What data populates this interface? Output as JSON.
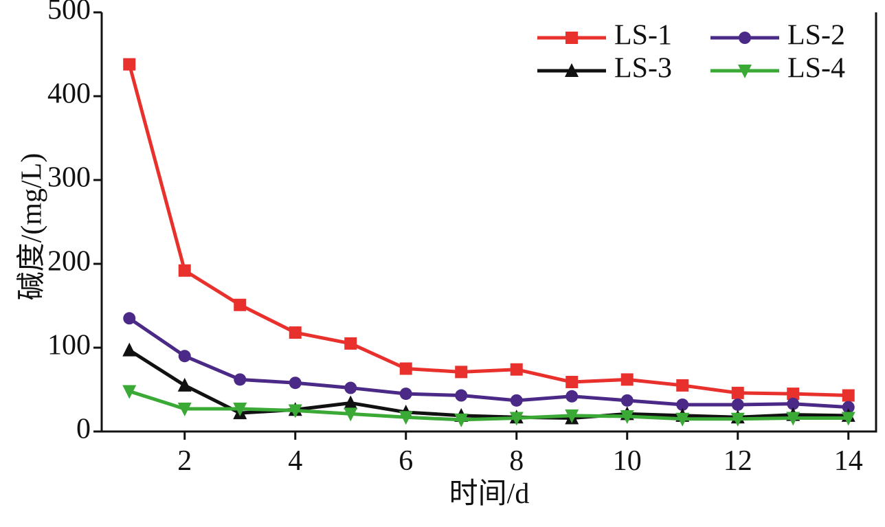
{
  "chart_data": {
    "type": "line",
    "x_label": "时间/d",
    "y_label": "碱度/(mg/L)",
    "x": [
      1,
      2,
      3,
      4,
      5,
      6,
      7,
      8,
      9,
      10,
      11,
      12,
      13,
      14
    ],
    "series": [
      {
        "name": "LS-1",
        "color": "#e8302c",
        "marker": "square",
        "values": [
          438,
          192,
          151,
          118,
          105,
          75,
          71,
          74,
          59,
          62,
          55,
          46,
          45,
          43
        ]
      },
      {
        "name": "LS-2",
        "color": "#4a2a86",
        "marker": "circle",
        "values": [
          135,
          90,
          62,
          58,
          52,
          45,
          43,
          37,
          42,
          37,
          32,
          32,
          33,
          29
        ]
      },
      {
        "name": "LS-3",
        "color": "#111111",
        "marker": "triangle-up",
        "values": [
          97,
          55,
          22,
          26,
          34,
          23,
          19,
          17,
          16,
          21,
          19,
          17,
          20,
          19
        ]
      },
      {
        "name": "LS-4",
        "color": "#3aa935",
        "marker": "triangle-down",
        "values": [
          48,
          27,
          27,
          25,
          21,
          17,
          14,
          16,
          19,
          18,
          15,
          15,
          16,
          16
        ]
      }
    ],
    "xlim": [
      0.5,
      14.5
    ],
    "xticks": [
      2,
      4,
      6,
      8,
      10,
      12,
      14
    ],
    "ylim": [
      0,
      500
    ],
    "yticks": [
      0,
      100,
      200,
      300,
      400,
      500
    ],
    "grid": false,
    "legend": "top-right"
  }
}
